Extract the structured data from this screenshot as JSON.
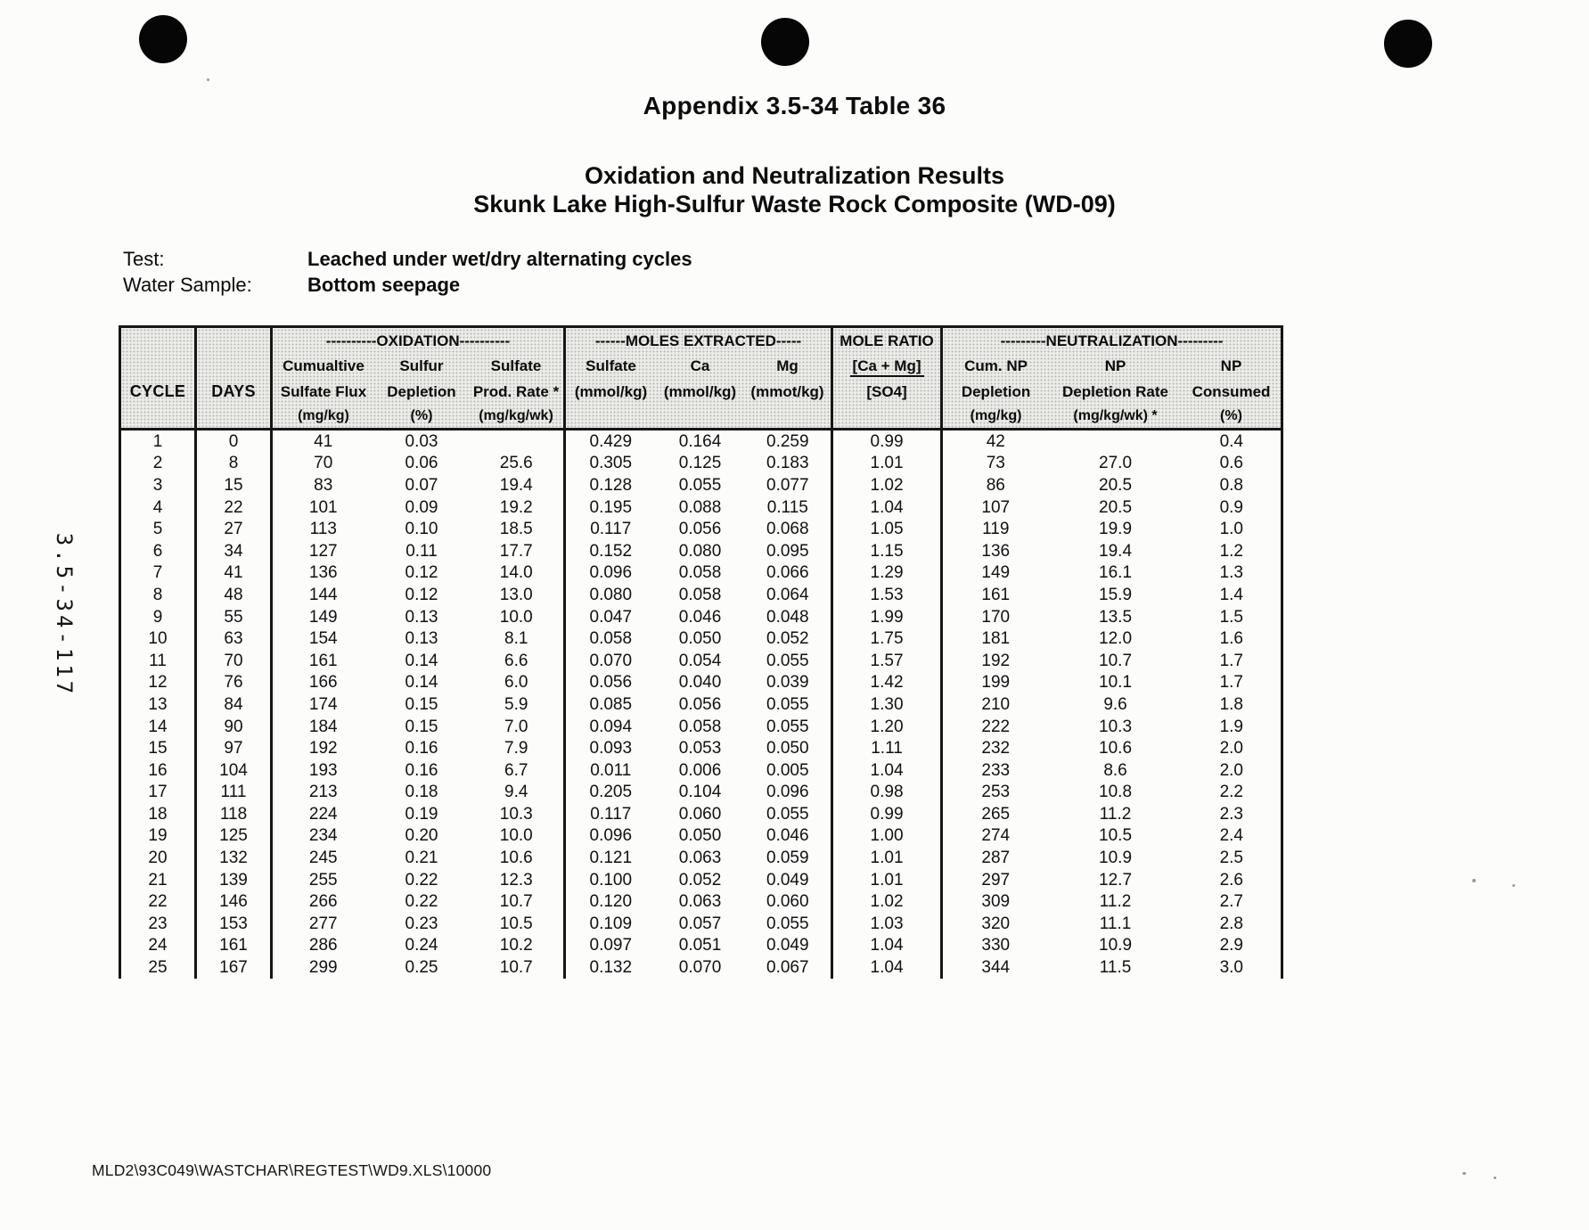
{
  "page": {
    "appendix_title": "Appendix 3.5-34 Table 36",
    "title_line1": "Oxidation and Neutralization Results",
    "title_line2": "Skunk Lake High-Sulfur Waste Rock Composite (WD-09)",
    "test_label": "Test:",
    "test_value": "Leached under wet/dry alternating cycles",
    "water_sample_label": "Water Sample:",
    "water_sample_value": "Bottom seepage",
    "sidebar_code": "3.5-34-117",
    "footer_path": "MLD2\\93C049\\WASTCHAR\\REGTEST\\WD9.XLS\\10000"
  },
  "table": {
    "header": {
      "cycle": "CYCLE",
      "days": "DAYS",
      "oxidation": {
        "group": "----------OXIDATION----------",
        "cols": [
          {
            "b": "Cumualtive",
            "c": "Sulfate Flux",
            "d": "(mg/kg)"
          },
          {
            "b": "Sulfur",
            "c": "Depletion",
            "d": "(%)"
          },
          {
            "b": "Sulfate",
            "c": "Prod. Rate *",
            "d": "(mg/kg/wk)"
          }
        ]
      },
      "moles": {
        "group": "------MOLES EXTRACTED-----",
        "cols": [
          {
            "b": "Sulfate",
            "c": "(mmol/kg)",
            "d": ""
          },
          {
            "b": "Ca",
            "c": "(mmol/kg)",
            "d": ""
          },
          {
            "b": "Mg",
            "c": "(mmot/kg)",
            "d": ""
          }
        ]
      },
      "ratio": {
        "group": "MOLE RATIO",
        "b": "[Ca + Mg]",
        "c": "[SO4]"
      },
      "neutralization": {
        "group": "---------NEUTRALIZATION---------",
        "cols": [
          {
            "b": "Cum. NP",
            "c": "Depletion",
            "d": "(mg/kg)"
          },
          {
            "b": "NP",
            "c": "Depletion Rate",
            "d": "(mg/kg/wk) *"
          },
          {
            "b": "NP",
            "c": "Consumed",
            "d": "(%)"
          }
        ]
      }
    },
    "rows": [
      [
        "1",
        "0",
        "41",
        "0.03",
        "",
        "0.429",
        "0.164",
        "0.259",
        "0.99",
        "42",
        "",
        "0.4"
      ],
      [
        "2",
        "8",
        "70",
        "0.06",
        "25.6",
        "0.305",
        "0.125",
        "0.183",
        "1.01",
        "73",
        "27.0",
        "0.6"
      ],
      [
        "3",
        "15",
        "83",
        "0.07",
        "19.4",
        "0.128",
        "0.055",
        "0.077",
        "1.02",
        "86",
        "20.5",
        "0.8"
      ],
      [
        "4",
        "22",
        "101",
        "0.09",
        "19.2",
        "0.195",
        "0.088",
        "0.115",
        "1.04",
        "107",
        "20.5",
        "0.9"
      ],
      [
        "5",
        "27",
        "113",
        "0.10",
        "18.5",
        "0.117",
        "0.056",
        "0.068",
        "1.05",
        "119",
        "19.9",
        "1.0"
      ],
      [
        "6",
        "34",
        "127",
        "0.11",
        "17.7",
        "0.152",
        "0.080",
        "0.095",
        "1.15",
        "136",
        "19.4",
        "1.2"
      ],
      [
        "7",
        "41",
        "136",
        "0.12",
        "14.0",
        "0.096",
        "0.058",
        "0.066",
        "1.29",
        "149",
        "16.1",
        "1.3"
      ],
      [
        "8",
        "48",
        "144",
        "0.12",
        "13.0",
        "0.080",
        "0.058",
        "0.064",
        "1.53",
        "161",
        "15.9",
        "1.4"
      ],
      [
        "9",
        "55",
        "149",
        "0.13",
        "10.0",
        "0.047",
        "0.046",
        "0.048",
        "1.99",
        "170",
        "13.5",
        "1.5"
      ],
      [
        "10",
        "63",
        "154",
        "0.13",
        "8.1",
        "0.058",
        "0.050",
        "0.052",
        "1.75",
        "181",
        "12.0",
        "1.6"
      ],
      [
        "11",
        "70",
        "161",
        "0.14",
        "6.6",
        "0.070",
        "0.054",
        "0.055",
        "1.57",
        "192",
        "10.7",
        "1.7"
      ],
      [
        "12",
        "76",
        "166",
        "0.14",
        "6.0",
        "0.056",
        "0.040",
        "0.039",
        "1.42",
        "199",
        "10.1",
        "1.7"
      ],
      [
        "13",
        "84",
        "174",
        "0.15",
        "5.9",
        "0.085",
        "0.056",
        "0.055",
        "1.30",
        "210",
        "9.6",
        "1.8"
      ],
      [
        "14",
        "90",
        "184",
        "0.15",
        "7.0",
        "0.094",
        "0.058",
        "0.055",
        "1.20",
        "222",
        "10.3",
        "1.9"
      ],
      [
        "15",
        "97",
        "192",
        "0.16",
        "7.9",
        "0.093",
        "0.053",
        "0.050",
        "1.11",
        "232",
        "10.6",
        "2.0"
      ],
      [
        "16",
        "104",
        "193",
        "0.16",
        "6.7",
        "0.011",
        "0.006",
        "0.005",
        "1.04",
        "233",
        "8.6",
        "2.0"
      ],
      [
        "17",
        "111",
        "213",
        "0.18",
        "9.4",
        "0.205",
        "0.104",
        "0.096",
        "0.98",
        "253",
        "10.8",
        "2.2"
      ],
      [
        "18",
        "118",
        "224",
        "0.19",
        "10.3",
        "0.117",
        "0.060",
        "0.055",
        "0.99",
        "265",
        "11.2",
        "2.3"
      ],
      [
        "19",
        "125",
        "234",
        "0.20",
        "10.0",
        "0.096",
        "0.050",
        "0.046",
        "1.00",
        "274",
        "10.5",
        "2.4"
      ],
      [
        "20",
        "132",
        "245",
        "0.21",
        "10.6",
        "0.121",
        "0.063",
        "0.059",
        "1.01",
        "287",
        "10.9",
        "2.5"
      ],
      [
        "21",
        "139",
        "255",
        "0.22",
        "12.3",
        "0.100",
        "0.052",
        "0.049",
        "1.01",
        "297",
        "12.7",
        "2.6"
      ],
      [
        "22",
        "146",
        "266",
        "0.22",
        "10.7",
        "0.120",
        "0.063",
        "0.060",
        "1.02",
        "309",
        "11.2",
        "2.7"
      ],
      [
        "23",
        "153",
        "277",
        "0.23",
        "10.5",
        "0.109",
        "0.057",
        "0.055",
        "1.03",
        "320",
        "11.1",
        "2.8"
      ],
      [
        "24",
        "161",
        "286",
        "0.24",
        "10.2",
        "0.097",
        "0.051",
        "0.049",
        "1.04",
        "330",
        "10.9",
        "2.9"
      ],
      [
        "25",
        "167",
        "299",
        "0.25",
        "10.7",
        "0.132",
        "0.070",
        "0.067",
        "1.04",
        "344",
        "11.5",
        "3.0"
      ]
    ]
  }
}
